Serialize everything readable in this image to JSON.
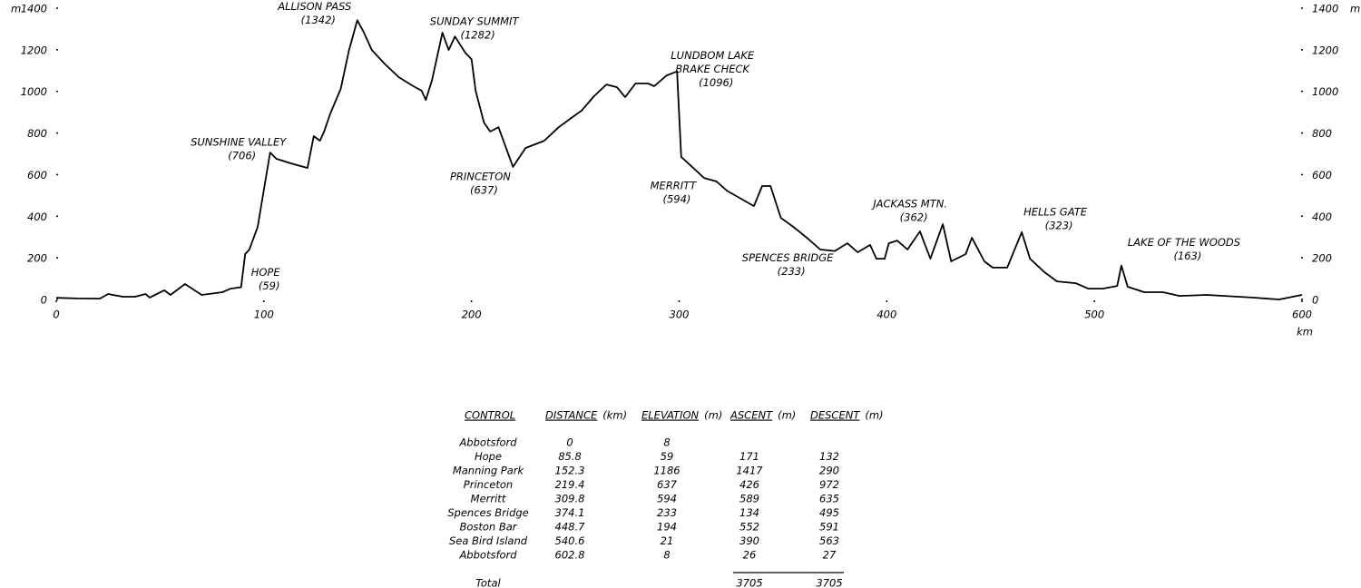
{
  "chart_data": {
    "type": "line",
    "color": "#000000",
    "ylabel": "m",
    "y2label": "m",
    "xlabel": "km",
    "xlim": [
      0,
      600
    ],
    "xticks": [
      0,
      100,
      200,
      300,
      400,
      500,
      600
    ],
    "ylim": [
      0,
      1400
    ],
    "yticks": [
      0,
      200,
      400,
      600,
      800,
      1000,
      1200,
      1400
    ],
    "y2lim": [
      0,
      1400
    ],
    "y2ticks": [
      0,
      200,
      400,
      600,
      800,
      1000,
      1200,
      1400
    ],
    "x": [
      0,
      10,
      21,
      25,
      32,
      38,
      43,
      45,
      52,
      55,
      62,
      70,
      80,
      84,
      89,
      91,
      93,
      97,
      103,
      106,
      113,
      121,
      124,
      127,
      129,
      132,
      137,
      141,
      145,
      148,
      152,
      158,
      165,
      172,
      176,
      178,
      181,
      186,
      189,
      192,
      197,
      200,
      202,
      206,
      209,
      213,
      220,
      226,
      235,
      242,
      248,
      253,
      259,
      265,
      270,
      274,
      279,
      285,
      288,
      294,
      299,
      301,
      312,
      318,
      323,
      336,
      340,
      344,
      349,
      355,
      362,
      368,
      375,
      381,
      386,
      392,
      395,
      399,
      401,
      405,
      410,
      416,
      421,
      427,
      431,
      438,
      441,
      447,
      451,
      458,
      465,
      469,
      476,
      482,
      491,
      497,
      504,
      511,
      513,
      516,
      524,
      533,
      541,
      554,
      576,
      589,
      600
    ],
    "values": [
      8,
      5,
      4,
      26,
      13,
      13,
      26,
      9,
      44,
      22,
      74,
      22,
      35,
      52,
      59,
      218,
      240,
      349,
      706,
      676,
      654,
      632,
      785,
      763,
      807,
      894,
      1012,
      1199,
      1342,
      1286,
      1199,
      1134,
      1068,
      1025,
      1003,
      959,
      1055,
      1282,
      1199,
      1264,
      1186,
      1155,
      1003,
      850,
      807,
      828,
      637,
      728,
      763,
      828,
      872,
      907,
      977,
      1033,
      1020,
      972,
      1038,
      1038,
      1025,
      1077,
      1096,
      685,
      584,
      567,
      523,
      449,
      545,
      545,
      392,
      349,
      292,
      240,
      233,
      270,
      227,
      262,
      196,
      196,
      270,
      283,
      240,
      327,
      196,
      362,
      183,
      218,
      296,
      183,
      153,
      153,
      323,
      196,
      131,
      87,
      78,
      52,
      52,
      65,
      163,
      61,
      35,
      35,
      17,
      22,
      9,
      0,
      22
    ],
    "annotations": [
      {
        "lines": [
          "SUNSHINE VALLEY"
        ],
        "label": "(706)",
        "x": 103,
        "y": 706
      },
      {
        "lines": [
          "HOPE"
        ],
        "label": "(59)",
        "x": 89,
        "y": 59
      },
      {
        "lines": [
          "ALLISON PASS"
        ],
        "label": "(1342)",
        "x": 145,
        "y": 1342
      },
      {
        "lines": [
          "SUNDAY SUMMIT"
        ],
        "label": "(1282)",
        "x": 186,
        "y": 1282
      },
      {
        "lines": [
          "PRINCETON"
        ],
        "label": "(637)",
        "x": 220,
        "y": 637
      },
      {
        "lines": [
          "LUNDBOM LAKE",
          "BRAKE CHECK"
        ],
        "label": "(1096)",
        "x": 299,
        "y": 1096
      },
      {
        "lines": [
          "MERRITT"
        ],
        "label": "(594)",
        "x": 305,
        "y": 594
      },
      {
        "lines": [
          "SPENCES BRIDGE"
        ],
        "label": "(233)",
        "x": 375,
        "y": 233
      },
      {
        "lines": [
          "JACKASS MTN."
        ],
        "label": "(362)",
        "x": 427,
        "y": 362
      },
      {
        "lines": [
          "HELLS GATE"
        ],
        "label": "(323)",
        "x": 465,
        "y": 323
      },
      {
        "lines": [
          "LAKE OF THE WOODS"
        ],
        "label": "(163)",
        "x": 513,
        "y": 163
      }
    ]
  },
  "table": {
    "columns": [
      {
        "title": "CONTROL"
      },
      {
        "title": "DISTANCE",
        "unit": "(km)"
      },
      {
        "title": "ELEVATION",
        "unit": "(m)"
      },
      {
        "title": "ASCENT",
        "unit": "(m)"
      },
      {
        "title": "DESCENT",
        "unit": "(m)"
      }
    ],
    "rows": [
      [
        "Abbotsford",
        0,
        8,
        null,
        null
      ],
      [
        "Hope",
        85.8,
        59,
        171,
        132
      ],
      [
        "Manning Park",
        152.3,
        1186,
        1417,
        290
      ],
      [
        "Princeton",
        219.4,
        637,
        426,
        972
      ],
      [
        "Merritt",
        309.8,
        594,
        589,
        635
      ],
      [
        "Spences Bridge",
        374.1,
        233,
        134,
        495
      ],
      [
        "Boston Bar",
        448.7,
        194,
        552,
        591
      ],
      [
        "Sea Bird Island",
        540.6,
        21,
        390,
        563
      ],
      [
        "Abbotsford",
        602.8,
        8,
        26,
        27
      ]
    ],
    "total": {
      "label": "Total",
      "ascent": 3705,
      "descent": 3705
    }
  }
}
